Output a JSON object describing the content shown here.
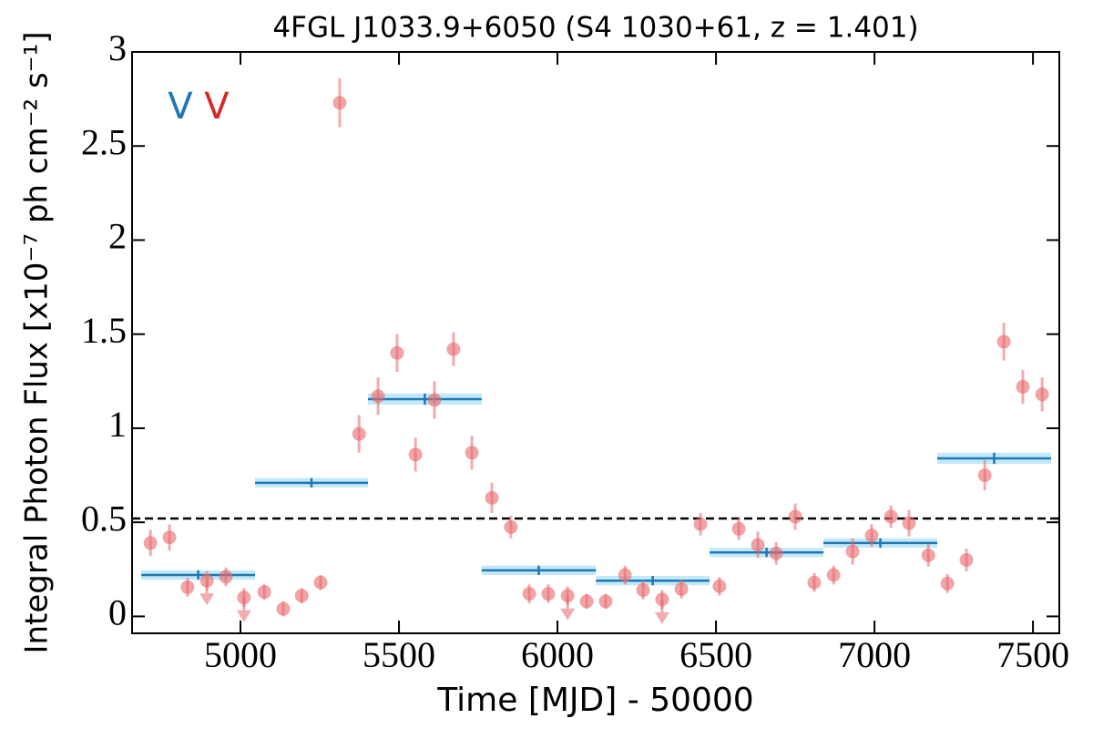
{
  "chart_data": {
    "type": "lightcurve",
    "title": "4FGL J1033.9+6050 (S4 1030+61, z = 1.401)",
    "x_label": "Time [MJD] - 50000",
    "y_label": "Integral Photon Flux [x10⁻⁷ ph cm⁻² s⁻¹]",
    "xlim": [
      4658,
      7583
    ],
    "ylim": [
      -0.09,
      3
    ],
    "xticks": [
      5000,
      5500,
      6000,
      6500,
      7000,
      7500
    ],
    "yticks": [
      0,
      0.5,
      1,
      1.5,
      2,
      2.5,
      3
    ],
    "points": {
      "color": "#e8676b",
      "x": [
        4716,
        4776,
        4833,
        4894,
        4954,
        5011,
        5075,
        5135,
        5193,
        5253,
        5313,
        5374,
        5434,
        5494,
        5552,
        5612,
        5672,
        5730,
        5793,
        5853,
        5911,
        5971,
        6032,
        6092,
        6152,
        6213,
        6270,
        6330,
        6391,
        6451,
        6511,
        6572,
        6632,
        6690,
        6750,
        6810,
        6871,
        6931,
        6991,
        7052,
        7109,
        7170,
        7230,
        7290,
        7348,
        7408,
        7468,
        7529
      ],
      "y": [
        0.39,
        0.42,
        0.155,
        0.19,
        0.21,
        0.1,
        0.13,
        0.04,
        0.11,
        0.18,
        2.73,
        0.97,
        1.17,
        1.4,
        0.86,
        1.15,
        1.42,
        0.87,
        0.63,
        0.475,
        0.12,
        0.12,
        0.11,
        0.08,
        0.08,
        0.22,
        0.14,
        0.09,
        0.145,
        0.49,
        0.16,
        0.465,
        0.38,
        0.335,
        0.53,
        0.18,
        0.22,
        0.345,
        0.43,
        0.53,
        0.495,
        0.325,
        0.175,
        0.3,
        0.75,
        1.46,
        1.22,
        1.18
      ],
      "err": [
        0.07,
        0.07,
        0.05,
        0.05,
        0.05,
        0.05,
        0.04,
        0.04,
        0.04,
        0.04,
        0.13,
        0.1,
        0.1,
        0.1,
        0.09,
        0.1,
        0.09,
        0.09,
        0.08,
        0.06,
        0.05,
        0.05,
        0.05,
        0.04,
        0.04,
        0.05,
        0.05,
        0.05,
        0.05,
        0.06,
        0.05,
        0.06,
        0.07,
        0.06,
        0.07,
        0.05,
        0.05,
        0.07,
        0.06,
        0.06,
        0.07,
        0.06,
        0.05,
        0.06,
        0.08,
        0.1,
        0.09,
        0.09
      ],
      "upper_limit": [
        false,
        false,
        false,
        true,
        false,
        true,
        false,
        false,
        false,
        false,
        false,
        false,
        false,
        false,
        false,
        false,
        false,
        false,
        false,
        false,
        false,
        false,
        true,
        false,
        false,
        false,
        false,
        true,
        false,
        false,
        false,
        false,
        false,
        false,
        false,
        false,
        false,
        false,
        false,
        false,
        false,
        false,
        false,
        false,
        false,
        false,
        false,
        false
      ]
    },
    "bins": {
      "color": "#1f77b4",
      "band_color": "#aadff5",
      "x_start": [
        4687,
        5046,
        5402,
        5761,
        6121,
        6480,
        6839,
        7198
      ],
      "x_end": [
        5046,
        5402,
        5761,
        6121,
        6480,
        6839,
        7198,
        7557
      ],
      "values": [
        0.22,
        0.71,
        1.155,
        0.245,
        0.19,
        0.34,
        0.39,
        0.84
      ],
      "errors": [
        0.025,
        0.025,
        0.03,
        0.025,
        0.025,
        0.025,
        0.025,
        0.03
      ]
    },
    "reference_line": {
      "value": 0.52,
      "color": "#000000",
      "dashed": true
    },
    "annotations": [
      {
        "text": "V",
        "x": 4810,
        "y": 2.7,
        "color": "#1f77b4"
      },
      {
        "text": "V",
        "x": 4925,
        "y": 2.7,
        "color": "#d62728"
      }
    ]
  }
}
